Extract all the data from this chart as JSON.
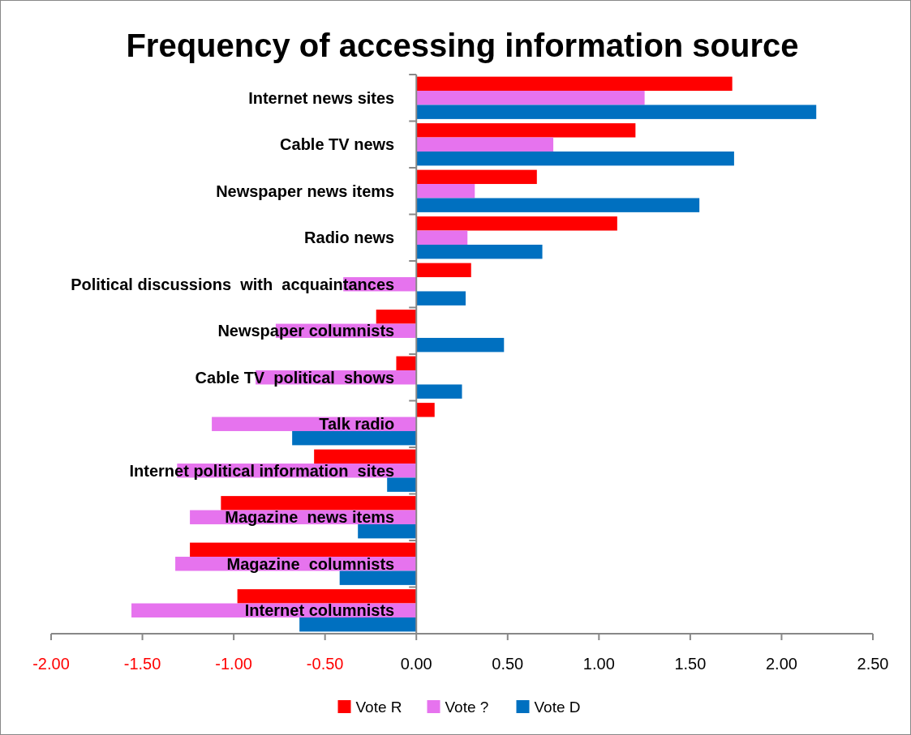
{
  "chart_data": {
    "type": "bar",
    "orientation": "horizontal",
    "title": "Frequency of accessing information source",
    "categories": [
      "Internet news sites",
      "Cable TV news",
      "Newspaper news items",
      "Radio news",
      "Political discussions  with  acquaintances",
      "Newspaper columnists",
      "Cable TV  political  shows",
      "Talk radio",
      "Internet political information  sites",
      "Magazine  news items",
      "Magazine  columnists",
      "Internet columnists"
    ],
    "series": [
      {
        "name": "Vote R",
        "color": "#ff0000",
        "values": [
          1.73,
          1.2,
          0.66,
          1.1,
          0.3,
          -0.22,
          -0.11,
          0.1,
          -0.56,
          -1.07,
          -1.24,
          -0.98
        ]
      },
      {
        "name": "Vote ?",
        "color": "#e673ee",
        "values": [
          1.25,
          0.75,
          0.32,
          0.28,
          -0.4,
          -0.77,
          -0.88,
          -1.12,
          -1.31,
          -1.24,
          -1.32,
          -1.56
        ]
      },
      {
        "name": "Vote D",
        "color": "#0070c0",
        "values": [
          2.19,
          1.74,
          1.55,
          0.69,
          0.27,
          0.48,
          0.25,
          -0.68,
          -0.16,
          -0.32,
          -0.42,
          -0.64
        ]
      }
    ],
    "xlim": [
      -2,
      2.5
    ],
    "xticks": [
      {
        "value": -2,
        "label": "-2.00"
      },
      {
        "value": -1.5,
        "label": "-1.50"
      },
      {
        "value": -1,
        "label": "-1.00"
      },
      {
        "value": -0.5,
        "label": "-0.50"
      },
      {
        "value": 0,
        "label": "0.00"
      },
      {
        "value": 0.5,
        "label": "0.50"
      },
      {
        "value": 1,
        "label": "1.00"
      },
      {
        "value": 1.5,
        "label": "1.50"
      },
      {
        "value": 2,
        "label": "2.00"
      },
      {
        "value": 2.5,
        "label": "2.50"
      }
    ],
    "grid": false,
    "legend": "bottom"
  }
}
